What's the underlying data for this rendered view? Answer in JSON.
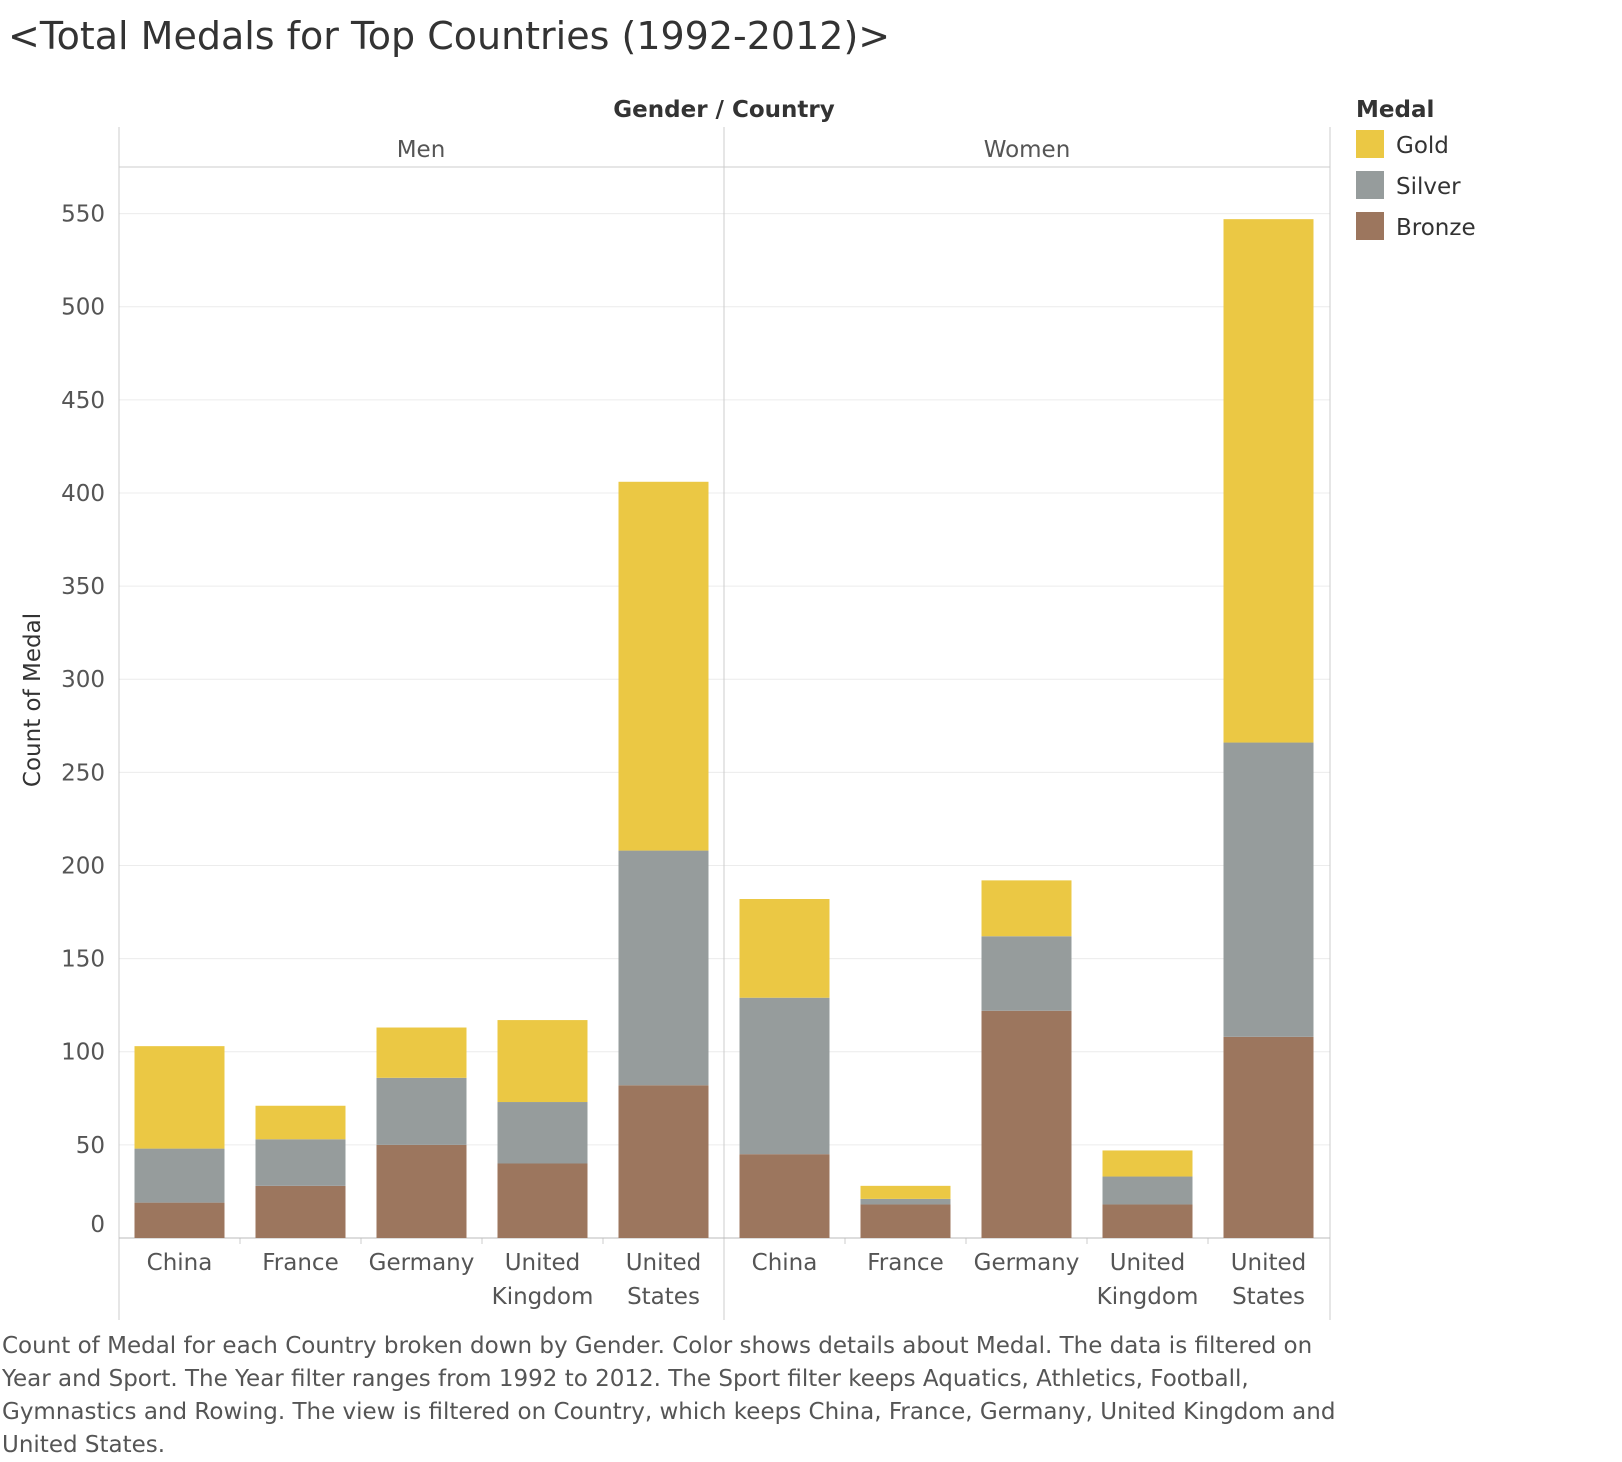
{
  "title": "<Total Medals for Top Countries (1992-2012)>",
  "caption": "Count of Medal for each Country broken down by Gender.  Color shows details about Medal. The data is filtered on Year and Sport. The Year filter ranges from 1992 to 2012. The Sport filter keeps Aquatics, Athletics, Football, Gymnastics and Rowing. The view is filtered on Country, which keeps China, France, Germany, United Kingdom and United States.",
  "colors": {
    "Gold": "#ebc844",
    "Silver": "#969c9c",
    "Bronze": "#9c765e"
  },
  "chart_data": {
    "type": "bar",
    "stacked": true,
    "header": "Gender / Country",
    "ylabel": "Count of Medal",
    "ylim": [
      0,
      575
    ],
    "yticks": [
      0,
      50,
      100,
      150,
      200,
      250,
      300,
      350,
      400,
      450,
      500,
      550
    ],
    "grid": true,
    "legend": {
      "title": "Medal",
      "position": "top-right",
      "items": [
        "Gold",
        "Silver",
        "Bronze"
      ]
    },
    "panels": [
      {
        "name": "Men",
        "categories": [
          "China",
          "France",
          "Germany",
          "United Kingdom",
          "United States"
        ],
        "series": [
          {
            "name": "Bronze",
            "values": [
              19,
              28,
              50,
              40,
              82
            ]
          },
          {
            "name": "Silver",
            "values": [
              29,
              25,
              36,
              33,
              126
            ]
          },
          {
            "name": "Gold",
            "values": [
              55,
              18,
              27,
              44,
              198
            ]
          }
        ]
      },
      {
        "name": "Women",
        "categories": [
          "China",
          "France",
          "Germany",
          "United Kingdom",
          "United States"
        ],
        "series": [
          {
            "name": "Bronze",
            "values": [
              45,
              18,
              122,
              18,
              108
            ]
          },
          {
            "name": "Silver",
            "values": [
              84,
              3,
              40,
              15,
              158
            ]
          },
          {
            "name": "Gold",
            "values": [
              53,
              7,
              30,
              14,
              281
            ]
          }
        ]
      }
    ]
  }
}
